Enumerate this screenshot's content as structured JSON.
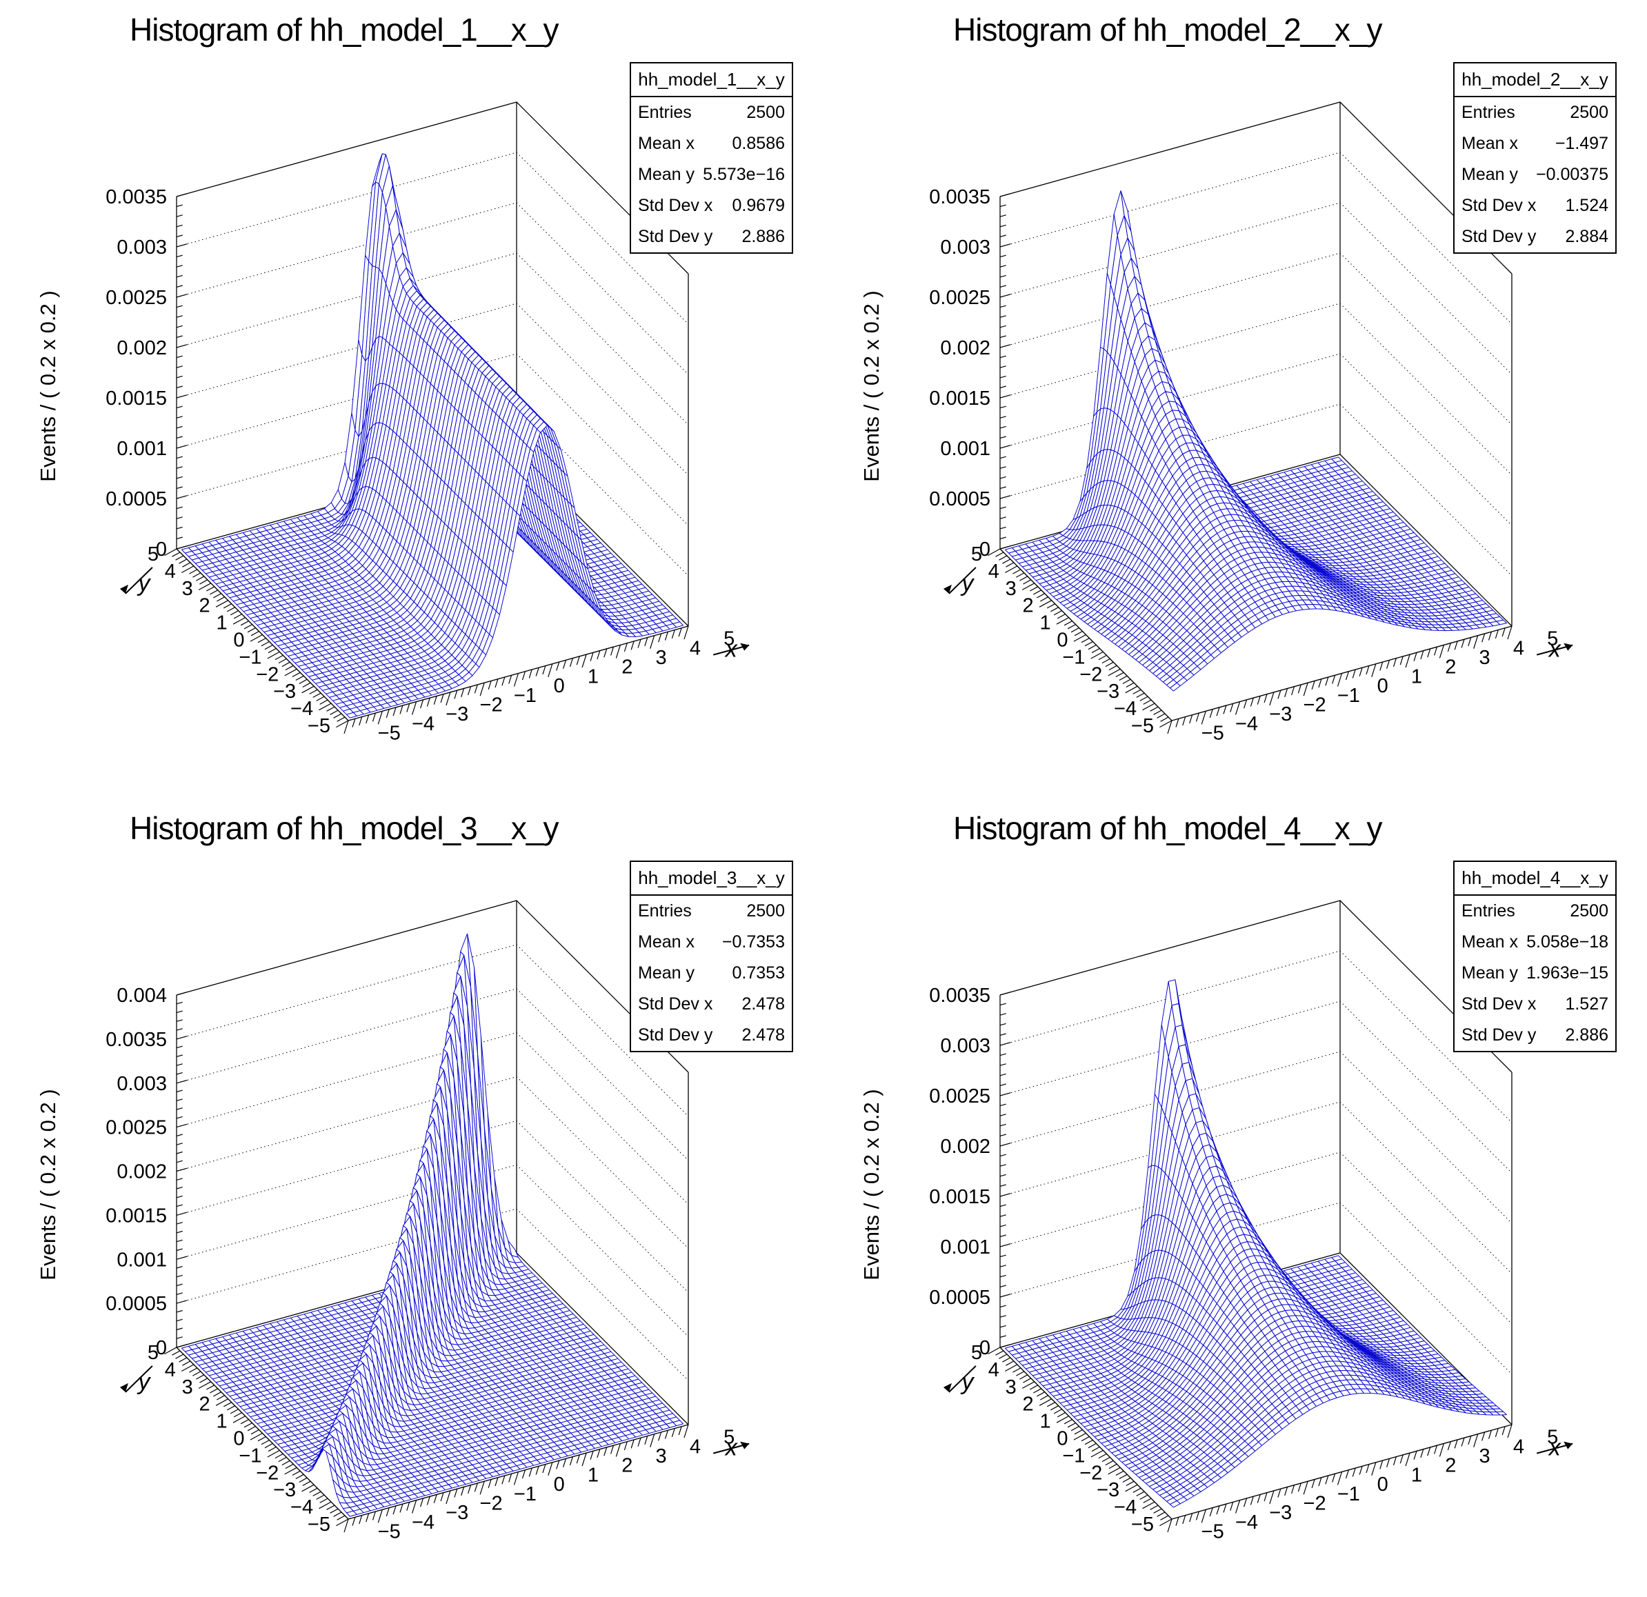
{
  "colors": {
    "mesh": "#0a0ad0",
    "frame": "#000000",
    "background": "#ffffff",
    "text": "#000000"
  },
  "axes": {
    "x_title": "x",
    "y_title": "y",
    "z_title": "Events / ( 0.2 x 0.2 )",
    "x_range": [
      -5,
      5
    ],
    "y_range": [
      -5,
      5
    ],
    "bins_x": 50,
    "bins_y": 50,
    "bin_width": 0.2,
    "x_labels": [
      "−5",
      "−4",
      "−3",
      "−2",
      "−1",
      "0",
      "1",
      "2",
      "3",
      "4",
      "5"
    ],
    "y_labels": [
      "5",
      "4",
      "3",
      "2",
      "1",
      "0",
      "−1",
      "−2",
      "−3",
      "−4",
      "−5"
    ]
  },
  "chart_data": [
    {
      "type": "surface3d_wireframe",
      "title": "Histogram of hh_model_1__x_y",
      "stats": {
        "header": "hh_model_1__x_y",
        "rows": [
          {
            "label": "Entries",
            "value": "2500"
          },
          {
            "label": "Mean x",
            "value": "0.8586"
          },
          {
            "label": "Mean y",
            "value": "5.573e−16"
          },
          {
            "label": "Std Dev x",
            "value": "0.9679"
          },
          {
            "label": "Std Dev y",
            "value": "2.886"
          }
        ]
      },
      "z_axis": {
        "max": 0.0035,
        "tick_step": 0.0005,
        "minor_step": 0.0001,
        "labels": [
          "0",
          "0.0005",
          "0.001",
          "0.0015",
          "0.002",
          "0.0025",
          "0.003",
          "0.0035"
        ]
      },
      "surface": {
        "model": "gauss_ridge_spike",
        "mu": 0.88,
        "sigma_base": 0.84,
        "sigma_dip": 0.4,
        "spike_y": 4.55,
        "spike_sigma_w": 0.75,
        "amp_base": 0.00238,
        "amp_front_slope": 3.5e-06,
        "amp_spike": 0.00106,
        "spike_amp_w": 0.62
      }
    },
    {
      "type": "surface3d_wireframe",
      "title": "Histogram of hh_model_2__x_y",
      "stats": {
        "header": "hh_model_2__x_y",
        "rows": [
          {
            "label": "Entries",
            "value": "2500"
          },
          {
            "label": "Mean x",
            "value": "−1.497"
          },
          {
            "label": "Mean y",
            "value": "−0.00375"
          },
          {
            "label": "Std Dev x",
            "value": "1.524"
          },
          {
            "label": "Std Dev y",
            "value": "2.884"
          }
        ]
      },
      "z_axis": {
        "max": 0.0035,
        "tick_step": 0.0005,
        "minor_step": 0.0001,
        "labels": [
          "0",
          "0.0005",
          "0.001",
          "0.0015",
          "0.002",
          "0.0025",
          "0.003",
          "0.0035"
        ]
      },
      "surface": {
        "model": "gauss_wall_varwidth",
        "mu": -1.5,
        "sigma0": 0.52,
        "sigma_slope": 0.19,
        "norm": 0.00175
      }
    },
    {
      "type": "surface3d_wireframe",
      "title": "Histogram of hh_model_3__x_y",
      "stats": {
        "header": "hh_model_3__x_y",
        "rows": [
          {
            "label": "Entries",
            "value": "2500"
          },
          {
            "label": "Mean x",
            "value": "−0.7353"
          },
          {
            "label": "Mean y",
            "value": "0.7353"
          },
          {
            "label": "Std Dev x",
            "value": "2.478"
          },
          {
            "label": "Std Dev y",
            "value": "2.478"
          }
        ]
      },
      "z_axis": {
        "max": 0.004,
        "tick_step": 0.0005,
        "minor_step": 0.0001,
        "labels": [
          "0",
          "0.0005",
          "0.001",
          "0.0015",
          "0.002",
          "0.0025",
          "0.003",
          "0.0035",
          "0.004"
        ]
      },
      "surface": {
        "model": "diagonal_ridge",
        "offset": 1.47,
        "width0": 0.4,
        "width_slope": 0.1,
        "peak": 0.0039,
        "rise": 0.25,
        "u_peak": 4.26
      }
    },
    {
      "type": "surface3d_wireframe",
      "title": "Histogram of hh_model_4__x_y",
      "stats": {
        "header": "hh_model_4__x_y",
        "rows": [
          {
            "label": "Entries",
            "value": "2500"
          },
          {
            "label": "Mean x",
            "value": "5.058e−18"
          },
          {
            "label": "Mean y",
            "value": "1.963e−15"
          },
          {
            "label": "Std Dev x",
            "value": "1.527"
          },
          {
            "label": "Std Dev y",
            "value": "2.886"
          }
        ]
      },
      "z_axis": {
        "max": 0.0035,
        "tick_step": 0.0005,
        "minor_step": 0.0001,
        "labels": [
          "0",
          "0.0005",
          "0.001",
          "0.0015",
          "0.002",
          "0.0025",
          "0.003",
          "0.0035"
        ]
      },
      "surface": {
        "model": "gauss_wall_varwidth",
        "mu": 0.0,
        "sigma0": 0.52,
        "sigma_slope": 0.19,
        "norm": 0.00175
      }
    }
  ]
}
